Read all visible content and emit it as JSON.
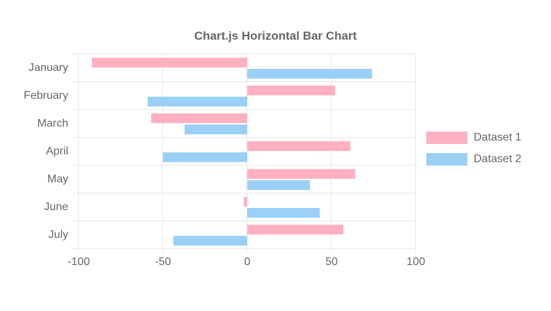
{
  "chart_data": {
    "type": "bar",
    "orientation": "horizontal",
    "title": "Chart.js Horizontal Bar Chart",
    "categories": [
      "January",
      "February",
      "March",
      "April",
      "May",
      "June",
      "July"
    ],
    "series": [
      {
        "name": "Dataset 1",
        "color": "#ffb1c1",
        "values": [
          -92,
          52,
          -57,
          61,
          64,
          -2,
          57
        ]
      },
      {
        "name": "Dataset 2",
        "color": "#9ad0f5",
        "values": [
          74,
          -59,
          -37,
          -50,
          37,
          43,
          -44
        ]
      }
    ],
    "xlim": [
      -100,
      100
    ],
    "x_ticks": [
      -100,
      -50,
      0,
      50,
      100
    ],
    "grid": true,
    "legend_position": "right"
  },
  "styles": {
    "grid_color": "#e7e7e7",
    "text_color": "#666666",
    "background": "#ffffff",
    "dataset1_color": "#ffb1c1",
    "dataset2_color": "#9ad0f5"
  }
}
